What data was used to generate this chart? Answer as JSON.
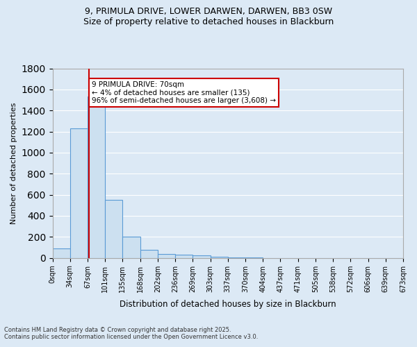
{
  "title_line1": "9, PRIMULA DRIVE, LOWER DARWEN, DARWEN, BB3 0SW",
  "title_line2": "Size of property relative to detached houses in Blackburn",
  "xlabel": "Distribution of detached houses by size in Blackburn",
  "ylabel": "Number of detached properties",
  "bin_labels": [
    "0sqm",
    "34sqm",
    "67sqm",
    "101sqm",
    "135sqm",
    "168sqm",
    "202sqm",
    "236sqm",
    "269sqm",
    "303sqm",
    "337sqm",
    "370sqm",
    "404sqm",
    "437sqm",
    "471sqm",
    "505sqm",
    "538sqm",
    "572sqm",
    "606sqm",
    "639sqm",
    "673sqm"
  ],
  "bar_heights": [
    90,
    1230,
    1530,
    550,
    205,
    75,
    40,
    30,
    25,
    10,
    5,
    2,
    1,
    1,
    0,
    0,
    0,
    0,
    0,
    0
  ],
  "bar_color": "#cce0f0",
  "bar_edge_color": "#5b9bd5",
  "property_line_x": 70,
  "property_line_bin": 2,
  "annotation_text": "9 PRIMULA DRIVE: 70sqm\n← 4% of detached houses are smaller (135)\n96% of semi-detached houses are larger (3,608) →",
  "annotation_box_color": "#ffffff",
  "annotation_box_edge": "#cc0000",
  "vline_color": "#cc0000",
  "ylim": [
    0,
    1800
  ],
  "yticks": [
    0,
    200,
    400,
    600,
    800,
    1000,
    1200,
    1400,
    1600,
    1800
  ],
  "grid_color": "#ffffff",
  "bg_color": "#dce9f5",
  "footnote1": "Contains HM Land Registry data © Crown copyright and database right 2025.",
  "footnote2": "Contains public sector information licensed under the Open Government Licence v3.0."
}
